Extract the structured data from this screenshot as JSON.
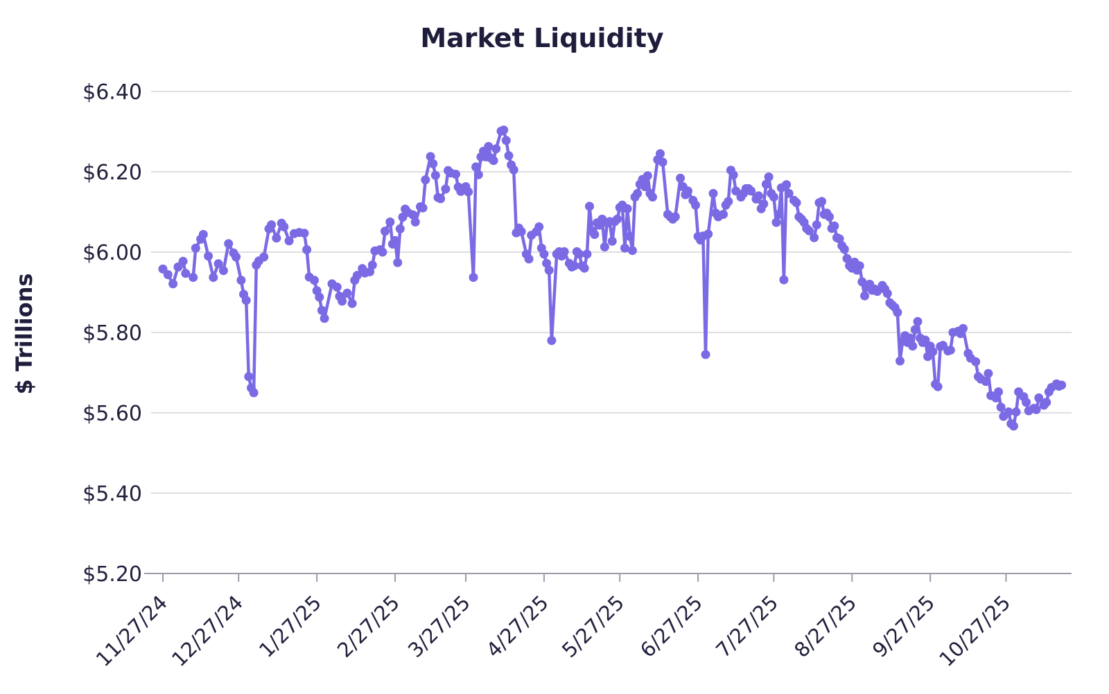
{
  "title": "Market Liquidity",
  "accent_color": "#7a6ae4",
  "text_color": "#1e1e3c",
  "grid_color": "#d4d4da",
  "axis_color": "#9b9caa",
  "chart_data": {
    "type": "line",
    "title": "Market Liquidity",
    "xlabel": "",
    "ylabel": "$ Trillions",
    "ylim": [
      5.2,
      6.4
    ],
    "y_tick_labels": [
      "$6.40",
      "$6.20",
      "$6.00",
      "$5.80",
      "$5.60",
      "$5.40",
      "$5.20"
    ],
    "y_tick_values": [
      6.4,
      6.2,
      6.0,
      5.8,
      5.6,
      5.4,
      5.2
    ],
    "x_start_date": "11/27/24",
    "x_unit": "days since 11/27/24",
    "x_tick_labels": [
      "11/27/24",
      "12/27/24",
      "1/27/25",
      "2/27/25",
      "3/27/25",
      "4/27/25",
      "5/27/25",
      "6/27/25",
      "7/27/25",
      "8/27/25",
      "9/27/25",
      "10/27/25"
    ],
    "x_tick_day_offsets": [
      0,
      30,
      61,
      92,
      120,
      151,
      181,
      212,
      242,
      273,
      304,
      334
    ],
    "x_max_day": 360,
    "grid": true,
    "legend": "none",
    "markers": true,
    "series_color": "#7a6ae4",
    "points": [
      [
        0,
        5.958
      ],
      [
        2,
        5.944
      ],
      [
        4,
        5.921
      ],
      [
        6,
        5.963
      ],
      [
        8,
        5.977
      ],
      [
        9,
        5.947
      ],
      [
        12,
        5.937
      ],
      [
        13,
        6.01
      ],
      [
        15,
        6.032
      ],
      [
        16,
        6.044
      ],
      [
        18,
        5.99
      ],
      [
        20,
        5.937
      ],
      [
        22,
        5.971
      ],
      [
        24,
        5.954
      ],
      [
        26,
        6.021
      ],
      [
        28,
        5.998
      ],
      [
        29,
        5.988
      ],
      [
        31,
        5.93
      ],
      [
        32,
        5.895
      ],
      [
        33,
        5.88
      ],
      [
        34,
        5.69
      ],
      [
        35,
        5.662
      ],
      [
        36,
        5.65
      ],
      [
        37,
        5.968
      ],
      [
        38,
        5.978
      ],
      [
        40,
        5.988
      ],
      [
        42,
        6.058
      ],
      [
        43,
        6.068
      ],
      [
        45,
        6.035
      ],
      [
        47,
        6.072
      ],
      [
        48,
        6.063
      ],
      [
        50,
        6.028
      ],
      [
        52,
        6.046
      ],
      [
        54,
        6.049
      ],
      [
        56,
        6.047
      ],
      [
        57,
        6.006
      ],
      [
        58,
        5.938
      ],
      [
        60,
        5.93
      ],
      [
        61,
        5.904
      ],
      [
        62,
        5.888
      ],
      [
        63,
        5.855
      ],
      [
        64,
        5.835
      ],
      [
        67,
        5.921
      ],
      [
        69,
        5.913
      ],
      [
        70,
        5.89
      ],
      [
        71,
        5.878
      ],
      [
        73,
        5.898
      ],
      [
        75,
        5.872
      ],
      [
        76,
        5.93
      ],
      [
        77,
        5.942
      ],
      [
        79,
        5.959
      ],
      [
        80,
        5.948
      ],
      [
        82,
        5.951
      ],
      [
        83,
        5.968
      ],
      [
        84,
        6.003
      ],
      [
        86,
        6.006
      ],
      [
        87,
        6.0
      ],
      [
        88,
        6.052
      ],
      [
        90,
        6.075
      ],
      [
        91,
        6.02
      ],
      [
        92,
        6.029
      ],
      [
        93,
        5.974
      ],
      [
        94,
        6.058
      ],
      [
        95,
        6.087
      ],
      [
        96,
        6.107
      ],
      [
        97,
        6.099
      ],
      [
        99,
        6.093
      ],
      [
        100,
        6.075
      ],
      [
        102,
        6.113
      ],
      [
        103,
        6.11
      ],
      [
        104,
        6.18
      ],
      [
        106,
        6.238
      ],
      [
        107,
        6.22
      ],
      [
        108,
        6.191
      ],
      [
        109,
        6.136
      ],
      [
        110,
        6.133
      ],
      [
        112,
        6.157
      ],
      [
        113,
        6.203
      ],
      [
        114,
        6.197
      ],
      [
        116,
        6.194
      ],
      [
        117,
        6.162
      ],
      [
        118,
        6.151
      ],
      [
        120,
        6.163
      ],
      [
        121,
        6.15
      ],
      [
        123,
        5.937
      ],
      [
        124,
        6.212
      ],
      [
        125,
        6.193
      ],
      [
        126,
        6.237
      ],
      [
        127,
        6.251
      ],
      [
        128,
        6.237
      ],
      [
        129,
        6.263
      ],
      [
        130,
        6.234
      ],
      [
        131,
        6.228
      ],
      [
        132,
        6.257
      ],
      [
        134,
        6.301
      ],
      [
        135,
        6.304
      ],
      [
        136,
        6.278
      ],
      [
        137,
        6.24
      ],
      [
        138,
        6.217
      ],
      [
        139,
        6.205
      ],
      [
        140,
        6.048
      ],
      [
        141,
        6.06
      ],
      [
        142,
        6.051
      ],
      [
        144,
        5.995
      ],
      [
        145,
        5.983
      ],
      [
        146,
        6.042
      ],
      [
        148,
        6.051
      ],
      [
        149,
        6.063
      ],
      [
        150,
        6.01
      ],
      [
        151,
        5.995
      ],
      [
        152,
        5.972
      ],
      [
        153,
        5.955
      ],
      [
        154,
        5.78
      ],
      [
        156,
        5.995
      ],
      [
        157,
        6.001
      ],
      [
        158,
        5.99
      ],
      [
        159,
        6.001
      ],
      [
        161,
        5.972
      ],
      [
        162,
        5.963
      ],
      [
        163,
        5.966
      ],
      [
        164,
        6.001
      ],
      [
        165,
        5.995
      ],
      [
        166,
        5.966
      ],
      [
        167,
        5.96
      ],
      [
        168,
        5.995
      ],
      [
        169,
        6.114
      ],
      [
        170,
        6.053
      ],
      [
        171,
        6.044
      ],
      [
        172,
        6.073
      ],
      [
        173,
        6.067
      ],
      [
        174,
        6.082
      ],
      [
        175,
        6.013
      ],
      [
        176,
        6.073
      ],
      [
        177,
        6.076
      ],
      [
        178,
        6.027
      ],
      [
        179,
        6.076
      ],
      [
        180,
        6.082
      ],
      [
        181,
        6.111
      ],
      [
        182,
        6.117
      ],
      [
        183,
        6.01
      ],
      [
        184,
        6.108
      ],
      [
        185,
        6.039
      ],
      [
        186,
        6.004
      ],
      [
        187,
        6.137
      ],
      [
        188,
        6.146
      ],
      [
        189,
        6.169
      ],
      [
        190,
        6.181
      ],
      [
        191,
        6.163
      ],
      [
        192,
        6.19
      ],
      [
        193,
        6.146
      ],
      [
        194,
        6.137
      ],
      [
        196,
        6.23
      ],
      [
        197,
        6.245
      ],
      [
        198,
        6.224
      ],
      [
        200,
        6.094
      ],
      [
        201,
        6.088
      ],
      [
        202,
        6.082
      ],
      [
        203,
        6.088
      ],
      [
        205,
        6.184
      ],
      [
        206,
        6.163
      ],
      [
        207,
        6.143
      ],
      [
        208,
        6.152
      ],
      [
        210,
        6.129
      ],
      [
        211,
        6.117
      ],
      [
        212,
        6.039
      ],
      [
        213,
        6.03
      ],
      [
        214,
        6.04
      ],
      [
        215,
        5.745
      ],
      [
        216,
        6.045
      ],
      [
        218,
        6.146
      ],
      [
        219,
        6.097
      ],
      [
        220,
        6.088
      ],
      [
        222,
        6.094
      ],
      [
        223,
        6.117
      ],
      [
        224,
        6.126
      ],
      [
        225,
        6.204
      ],
      [
        226,
        6.192
      ],
      [
        227,
        6.152
      ],
      [
        229,
        6.137
      ],
      [
        230,
        6.146
      ],
      [
        231,
        6.158
      ],
      [
        232,
        6.158
      ],
      [
        233,
        6.152
      ],
      [
        235,
        6.132
      ],
      [
        236,
        6.14
      ],
      [
        237,
        6.108
      ],
      [
        238,
        6.12
      ],
      [
        239,
        6.169
      ],
      [
        240,
        6.187
      ],
      [
        241,
        6.146
      ],
      [
        242,
        6.137
      ],
      [
        243,
        6.074
      ],
      [
        244,
        6.094
      ],
      [
        245,
        6.16
      ],
      [
        246,
        5.931
      ],
      [
        247,
        6.168
      ],
      [
        248,
        6.146
      ],
      [
        250,
        6.129
      ],
      [
        251,
        6.123
      ],
      [
        252,
        6.088
      ],
      [
        253,
        6.082
      ],
      [
        254,
        6.074
      ],
      [
        255,
        6.059
      ],
      [
        256,
        6.053
      ],
      [
        258,
        6.036
      ],
      [
        259,
        6.068
      ],
      [
        260,
        6.123
      ],
      [
        261,
        6.126
      ],
      [
        262,
        6.094
      ],
      [
        263,
        6.097
      ],
      [
        264,
        6.088
      ],
      [
        265,
        6.059
      ],
      [
        266,
        6.065
      ],
      [
        267,
        6.036
      ],
      [
        268,
        6.033
      ],
      [
        269,
        6.016
      ],
      [
        270,
        6.007
      ],
      [
        271,
        5.984
      ],
      [
        272,
        5.966
      ],
      [
        273,
        5.96
      ],
      [
        274,
        5.975
      ],
      [
        275,
        5.955
      ],
      [
        276,
        5.966
      ],
      [
        277,
        5.926
      ],
      [
        278,
        5.891
      ],
      [
        279,
        5.914
      ],
      [
        280,
        5.92
      ],
      [
        281,
        5.905
      ],
      [
        282,
        5.908
      ],
      [
        283,
        5.902
      ],
      [
        285,
        5.917
      ],
      [
        286,
        5.908
      ],
      [
        287,
        5.897
      ],
      [
        288,
        5.874
      ],
      [
        289,
        5.868
      ],
      [
        290,
        5.862
      ],
      [
        291,
        5.85
      ],
      [
        292,
        5.729
      ],
      [
        293,
        5.778
      ],
      [
        294,
        5.792
      ],
      [
        295,
        5.775
      ],
      [
        296,
        5.786
      ],
      [
        297,
        5.766
      ],
      [
        298,
        5.807
      ],
      [
        299,
        5.827
      ],
      [
        300,
        5.786
      ],
      [
        301,
        5.775
      ],
      [
        302,
        5.781
      ],
      [
        303,
        5.74
      ],
      [
        304,
        5.766
      ],
      [
        305,
        5.752
      ],
      [
        306,
        5.671
      ],
      [
        307,
        5.665
      ],
      [
        308,
        5.765
      ],
      [
        309,
        5.768
      ],
      [
        311,
        5.754
      ],
      [
        312,
        5.756
      ],
      [
        313,
        5.8
      ],
      [
        315,
        5.803
      ],
      [
        316,
        5.797
      ],
      [
        317,
        5.81
      ],
      [
        319,
        5.748
      ],
      [
        320,
        5.736
      ],
      [
        322,
        5.727
      ],
      [
        323,
        5.69
      ],
      [
        324,
        5.684
      ],
      [
        326,
        5.678
      ],
      [
        327,
        5.698
      ],
      [
        328,
        5.643
      ],
      [
        330,
        5.637
      ],
      [
        331,
        5.652
      ],
      [
        332,
        5.614
      ],
      [
        333,
        5.591
      ],
      [
        335,
        5.602
      ],
      [
        336,
        5.573
      ],
      [
        337,
        5.567
      ],
      [
        338,
        5.602
      ],
      [
        339,
        5.652
      ],
      [
        341,
        5.64
      ],
      [
        342,
        5.626
      ],
      [
        343,
        5.605
      ],
      [
        345,
        5.611
      ],
      [
        346,
        5.608
      ],
      [
        347,
        5.637
      ],
      [
        349,
        5.619
      ],
      [
        350,
        5.626
      ],
      [
        351,
        5.652
      ],
      [
        352,
        5.663
      ],
      [
        354,
        5.672
      ],
      [
        355,
        5.666
      ],
      [
        356,
        5.669
      ]
    ]
  }
}
